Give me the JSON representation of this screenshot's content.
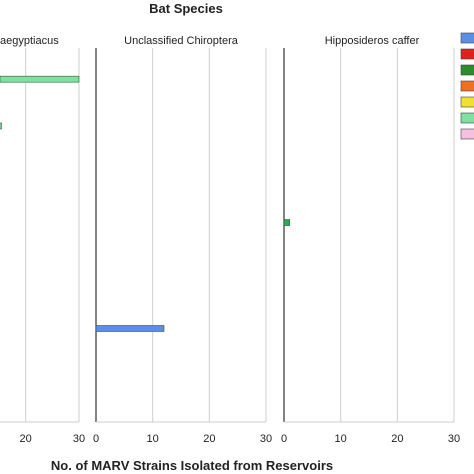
{
  "chart_data": {
    "type": "bar",
    "orientation": "horizontal",
    "title": "Bat Species",
    "xlabel": "No. of MARV Strains Isolated from Reservoirs",
    "xlim": [
      0,
      30
    ],
    "xticks": [
      0,
      10,
      20,
      30
    ],
    "grid": true,
    "legend_position": "right",
    "panels": [
      {
        "title": "Rousettus aegyptiacus",
        "visible_title": "aegyptiacus",
        "visible_ticks": [
          "20",
          "30"
        ],
        "bars": [
          {
            "row": 1,
            "value": 30,
            "color": "#7fe0a0"
          },
          {
            "row": 1.75,
            "value": 1,
            "color": "#a8eec4"
          }
        ]
      },
      {
        "title": "Unclassified Chiroptera",
        "visible_ticks": [
          "0",
          "10",
          "20",
          "30"
        ],
        "bars": [
          {
            "row": 5,
            "value": 12,
            "color": "#5b8fe6"
          }
        ]
      },
      {
        "title": "Hipposideros caffer",
        "visible_ticks": [
          "0",
          "10",
          "20",
          "30"
        ],
        "bars": [
          {
            "row": 3.3,
            "value": 1,
            "color": "#2eaa50"
          }
        ]
      }
    ],
    "legend_colors": [
      "#5b8fe6",
      "#e0201c",
      "#2e8b2e",
      "#f07020",
      "#f0e030",
      "#7fe0a0",
      "#f8c0e0"
    ]
  }
}
